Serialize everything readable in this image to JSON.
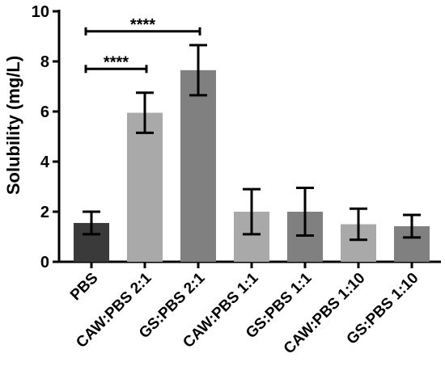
{
  "chart_data": {
    "type": "bar",
    "title": "",
    "xlabel": "",
    "ylabel": "Solubility (mg/L)",
    "ylim": [
      0,
      10
    ],
    "yticks": [
      0,
      2,
      4,
      6,
      8,
      10
    ],
    "grid": false,
    "categories": [
      "PBS",
      "CAW:PBS 2:1",
      "GS:PBS 2:1",
      "CAW:PBS 1:1",
      "GS:PBS 1:1",
      "CAW:PBS 1:10",
      "GS:PBS 1:10"
    ],
    "values": [
      1.55,
      5.95,
      7.65,
      2.0,
      2.0,
      1.5,
      1.42
    ],
    "errors": [
      0.45,
      0.8,
      1.0,
      0.9,
      0.95,
      0.62,
      0.45
    ],
    "bar_colors": [
      "#3a3a3a",
      "#a9a9a9",
      "#808080",
      "#a9a9a9",
      "#808080",
      "#a9a9a9",
      "#808080"
    ],
    "significance": [
      {
        "from": "PBS",
        "to": "CAW:PBS 2:1",
        "label": "****",
        "y": 7.7
      },
      {
        "from": "PBS",
        "to": "GS:PBS 2:1",
        "label": "****",
        "y": 9.2
      }
    ]
  }
}
